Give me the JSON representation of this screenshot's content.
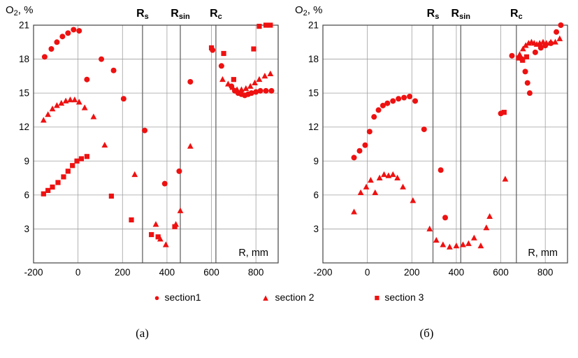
{
  "figure": {
    "legend": {
      "items": [
        {
          "label": "section1",
          "marker": "circle",
          "glyph": "●"
        },
        {
          "label": "section 2",
          "marker": "triangle",
          "glyph": "▲"
        },
        {
          "label": "section 3",
          "marker": "square",
          "glyph": "■"
        }
      ]
    },
    "captions": {
      "left": "(а)",
      "right": "(б)"
    }
  },
  "colors": {
    "marker": "#ee1111",
    "grid": "#a0a0a0",
    "frame": "#444444",
    "refline": "#666666",
    "text": "#000000"
  },
  "chart_data": [
    {
      "type": "scatter",
      "caption": "(а)",
      "ylabel": {
        "base": "O",
        "sub": "2",
        "rest": ", %"
      },
      "xlabel": "R, mm",
      "xlim": [
        -200,
        900
      ],
      "ylim": [
        0,
        21
      ],
      "xticks": [
        -200,
        0,
        200,
        400,
        600,
        800
      ],
      "yticks": [
        3,
        6,
        9,
        12,
        15,
        18,
        21
      ],
      "grid": true,
      "reflines": [
        {
          "base": "R",
          "sub": "s",
          "x": 290
        },
        {
          "base": "R",
          "sub": "sin",
          "x": 460
        },
        {
          "base": "R",
          "sub": "c",
          "x": 620
        }
      ],
      "series": [
        {
          "name": "section1",
          "marker": "circle",
          "points": [
            [
              -150,
              18.2
            ],
            [
              -120,
              18.9
            ],
            [
              -95,
              19.5
            ],
            [
              -70,
              20.0
            ],
            [
              -45,
              20.3
            ],
            [
              -20,
              20.6
            ],
            [
              5,
              20.5
            ],
            [
              40,
              16.2
            ],
            [
              105,
              18.0
            ],
            [
              160,
              17.0
            ],
            [
              205,
              14.5
            ],
            [
              300,
              11.7
            ],
            [
              390,
              7.0
            ],
            [
              455,
              8.1
            ],
            [
              505,
              16.0
            ],
            [
              605,
              18.8
            ],
            [
              645,
              17.4
            ],
            [
              690,
              15.6
            ],
            [
              705,
              15.2
            ],
            [
              720,
              15.0
            ],
            [
              735,
              14.9
            ],
            [
              750,
              14.8
            ],
            [
              765,
              14.9
            ],
            [
              780,
              15.0
            ],
            [
              800,
              15.1
            ],
            [
              820,
              15.2
            ],
            [
              845,
              15.2
            ],
            [
              870,
              15.2
            ]
          ]
        },
        {
          "name": "section 2",
          "marker": "triangle",
          "points": [
            [
              -155,
              12.6
            ],
            [
              -135,
              13.1
            ],
            [
              -115,
              13.6
            ],
            [
              -95,
              13.9
            ],
            [
              -75,
              14.1
            ],
            [
              -55,
              14.3
            ],
            [
              -35,
              14.4
            ],
            [
              -15,
              14.4
            ],
            [
              5,
              14.2
            ],
            [
              30,
              13.7
            ],
            [
              70,
              12.9
            ],
            [
              120,
              10.4
            ],
            [
              255,
              7.8
            ],
            [
              350,
              3.4
            ],
            [
              370,
              2.1
            ],
            [
              395,
              1.6
            ],
            [
              440,
              3.4
            ],
            [
              460,
              4.6
            ],
            [
              505,
              10.3
            ],
            [
              650,
              16.2
            ],
            [
              675,
              15.8
            ],
            [
              695,
              15.5
            ],
            [
              715,
              15.3
            ],
            [
              735,
              15.3
            ],
            [
              755,
              15.4
            ],
            [
              775,
              15.6
            ],
            [
              795,
              15.9
            ],
            [
              815,
              16.2
            ],
            [
              840,
              16.5
            ],
            [
              865,
              16.7
            ]
          ]
        },
        {
          "name": "section 3",
          "marker": "square",
          "points": [
            [
              -155,
              6.1
            ],
            [
              -135,
              6.4
            ],
            [
              -115,
              6.7
            ],
            [
              -90,
              7.1
            ],
            [
              -65,
              7.6
            ],
            [
              -45,
              8.1
            ],
            [
              -25,
              8.6
            ],
            [
              -5,
              9.0
            ],
            [
              15,
              9.2
            ],
            [
              40,
              9.4
            ],
            [
              150,
              5.9
            ],
            [
              240,
              3.8
            ],
            [
              330,
              2.5
            ],
            [
              360,
              2.3
            ],
            [
              435,
              3.2
            ],
            [
              600,
              19.0
            ],
            [
              655,
              18.5
            ],
            [
              700,
              16.2
            ],
            [
              790,
              18.9
            ],
            [
              815,
              20.9
            ],
            [
              845,
              21.0
            ],
            [
              865,
              21.0
            ]
          ]
        }
      ]
    },
    {
      "type": "scatter",
      "caption": "(б)",
      "ylabel": {
        "base": "O",
        "sub": "2",
        "rest": ", %"
      },
      "xlabel": "R, mm",
      "xlim": [
        -200,
        900
      ],
      "ylim": [
        0,
        21
      ],
      "xticks": [
        -200,
        0,
        200,
        400,
        600,
        800
      ],
      "yticks": [
        3,
        6,
        9,
        12,
        15,
        18,
        21
      ],
      "grid": true,
      "reflines": [
        {
          "base": "R",
          "sub": "s",
          "x": 295
        },
        {
          "base": "R",
          "sub": "sin",
          "x": 420
        },
        {
          "base": "R",
          "sub": "c",
          "x": 670
        }
      ],
      "series": [
        {
          "name": "section1",
          "marker": "circle",
          "points": [
            [
              -60,
              9.3
            ],
            [
              -35,
              9.9
            ],
            [
              -10,
              10.4
            ],
            [
              10,
              11.6
            ],
            [
              30,
              12.9
            ],
            [
              50,
              13.5
            ],
            [
              70,
              13.9
            ],
            [
              90,
              14.1
            ],
            [
              115,
              14.3
            ],
            [
              140,
              14.5
            ],
            [
              165,
              14.6
            ],
            [
              190,
              14.7
            ],
            [
              215,
              14.3
            ],
            [
              255,
              11.8
            ],
            [
              330,
              8.2
            ],
            [
              350,
              4.0
            ],
            [
              600,
              13.2
            ],
            [
              650,
              18.3
            ],
            [
              695,
              18.0
            ],
            [
              710,
              16.9
            ],
            [
              720,
              15.9
            ],
            [
              730,
              15.0
            ],
            [
              755,
              18.6
            ],
            [
              780,
              19.0
            ],
            [
              800,
              19.2
            ],
            [
              825,
              19.4
            ],
            [
              850,
              20.4
            ],
            [
              870,
              21.0
            ]
          ]
        },
        {
          "name": "section 2",
          "marker": "triangle",
          "points": [
            [
              -60,
              4.5
            ],
            [
              -30,
              6.2
            ],
            [
              -5,
              6.7
            ],
            [
              15,
              7.3
            ],
            [
              35,
              6.2
            ],
            [
              55,
              7.5
            ],
            [
              75,
              7.8
            ],
            [
              95,
              7.7
            ],
            [
              115,
              7.8
            ],
            [
              135,
              7.5
            ],
            [
              160,
              6.7
            ],
            [
              205,
              5.5
            ],
            [
              280,
              3.0
            ],
            [
              310,
              2.0
            ],
            [
              340,
              1.6
            ],
            [
              370,
              1.4
            ],
            [
              400,
              1.5
            ],
            [
              430,
              1.6
            ],
            [
              455,
              1.7
            ],
            [
              480,
              2.2
            ],
            [
              510,
              1.5
            ],
            [
              535,
              3.1
            ],
            [
              550,
              4.1
            ],
            [
              620,
              7.4
            ],
            [
              685,
              18.4
            ],
            [
              700,
              18.9
            ],
            [
              712,
              19.2
            ],
            [
              725,
              19.4
            ],
            [
              738,
              19.5
            ],
            [
              750,
              19.4
            ],
            [
              762,
              19.3
            ],
            [
              775,
              19.4
            ],
            [
              790,
              19.5
            ],
            [
              805,
              19.4
            ],
            [
              825,
              19.5
            ],
            [
              845,
              19.5
            ],
            [
              865,
              19.8
            ]
          ]
        },
        {
          "name": "section 3",
          "marker": "square",
          "points": [
            [
              615,
              13.3
            ],
            [
              680,
              18.1
            ],
            [
              698,
              17.9
            ],
            [
              716,
              18.2
            ]
          ]
        }
      ]
    }
  ]
}
